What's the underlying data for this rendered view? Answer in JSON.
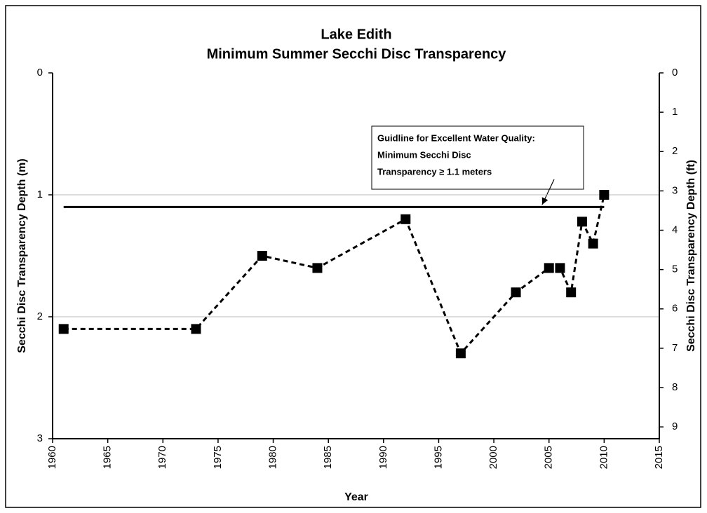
{
  "chart_data": {
    "type": "line",
    "title": [
      "Lake Edith",
      "Minimum Summer Secchi Disc Transparency"
    ],
    "x_label": "Year",
    "y_label": "Secchi Disc Transparency Depth (m)",
    "y2_label": "Secchi Disc Transparency Depth (ft)",
    "x": [
      1961,
      1973,
      1979,
      1984,
      1992,
      1997,
      2002,
      2005,
      2006,
      2007,
      2008,
      2009,
      2010
    ],
    "series": [
      {
        "name": "Secchi depth",
        "color": "#000000",
        "values": [
          2.1,
          2.1,
          1.5,
          1.6,
          1.2,
          2.3,
          1.8,
          1.6,
          1.6,
          1.8,
          1.22,
          1.4,
          1.0
        ]
      }
    ],
    "guideline": 1.1,
    "annotation": [
      "Guidline for Excellent Water Quality:",
      "Minimum Secchi Disc",
      "Transparency ≥ 1.1 meters"
    ],
    "xlim": [
      1960,
      2015
    ],
    "xticks": [
      1960,
      1965,
      1970,
      1975,
      1980,
      1985,
      1990,
      1995,
      2000,
      2005,
      2010,
      2015
    ],
    "ylim": [
      0,
      3
    ],
    "yticks": [
      0,
      1,
      2,
      3
    ],
    "y_inverted": true,
    "y2lim": [
      0,
      9.3
    ],
    "y2ticks": [
      0,
      1,
      2,
      3,
      4,
      5,
      6,
      7,
      8,
      9
    ],
    "grid": true
  }
}
